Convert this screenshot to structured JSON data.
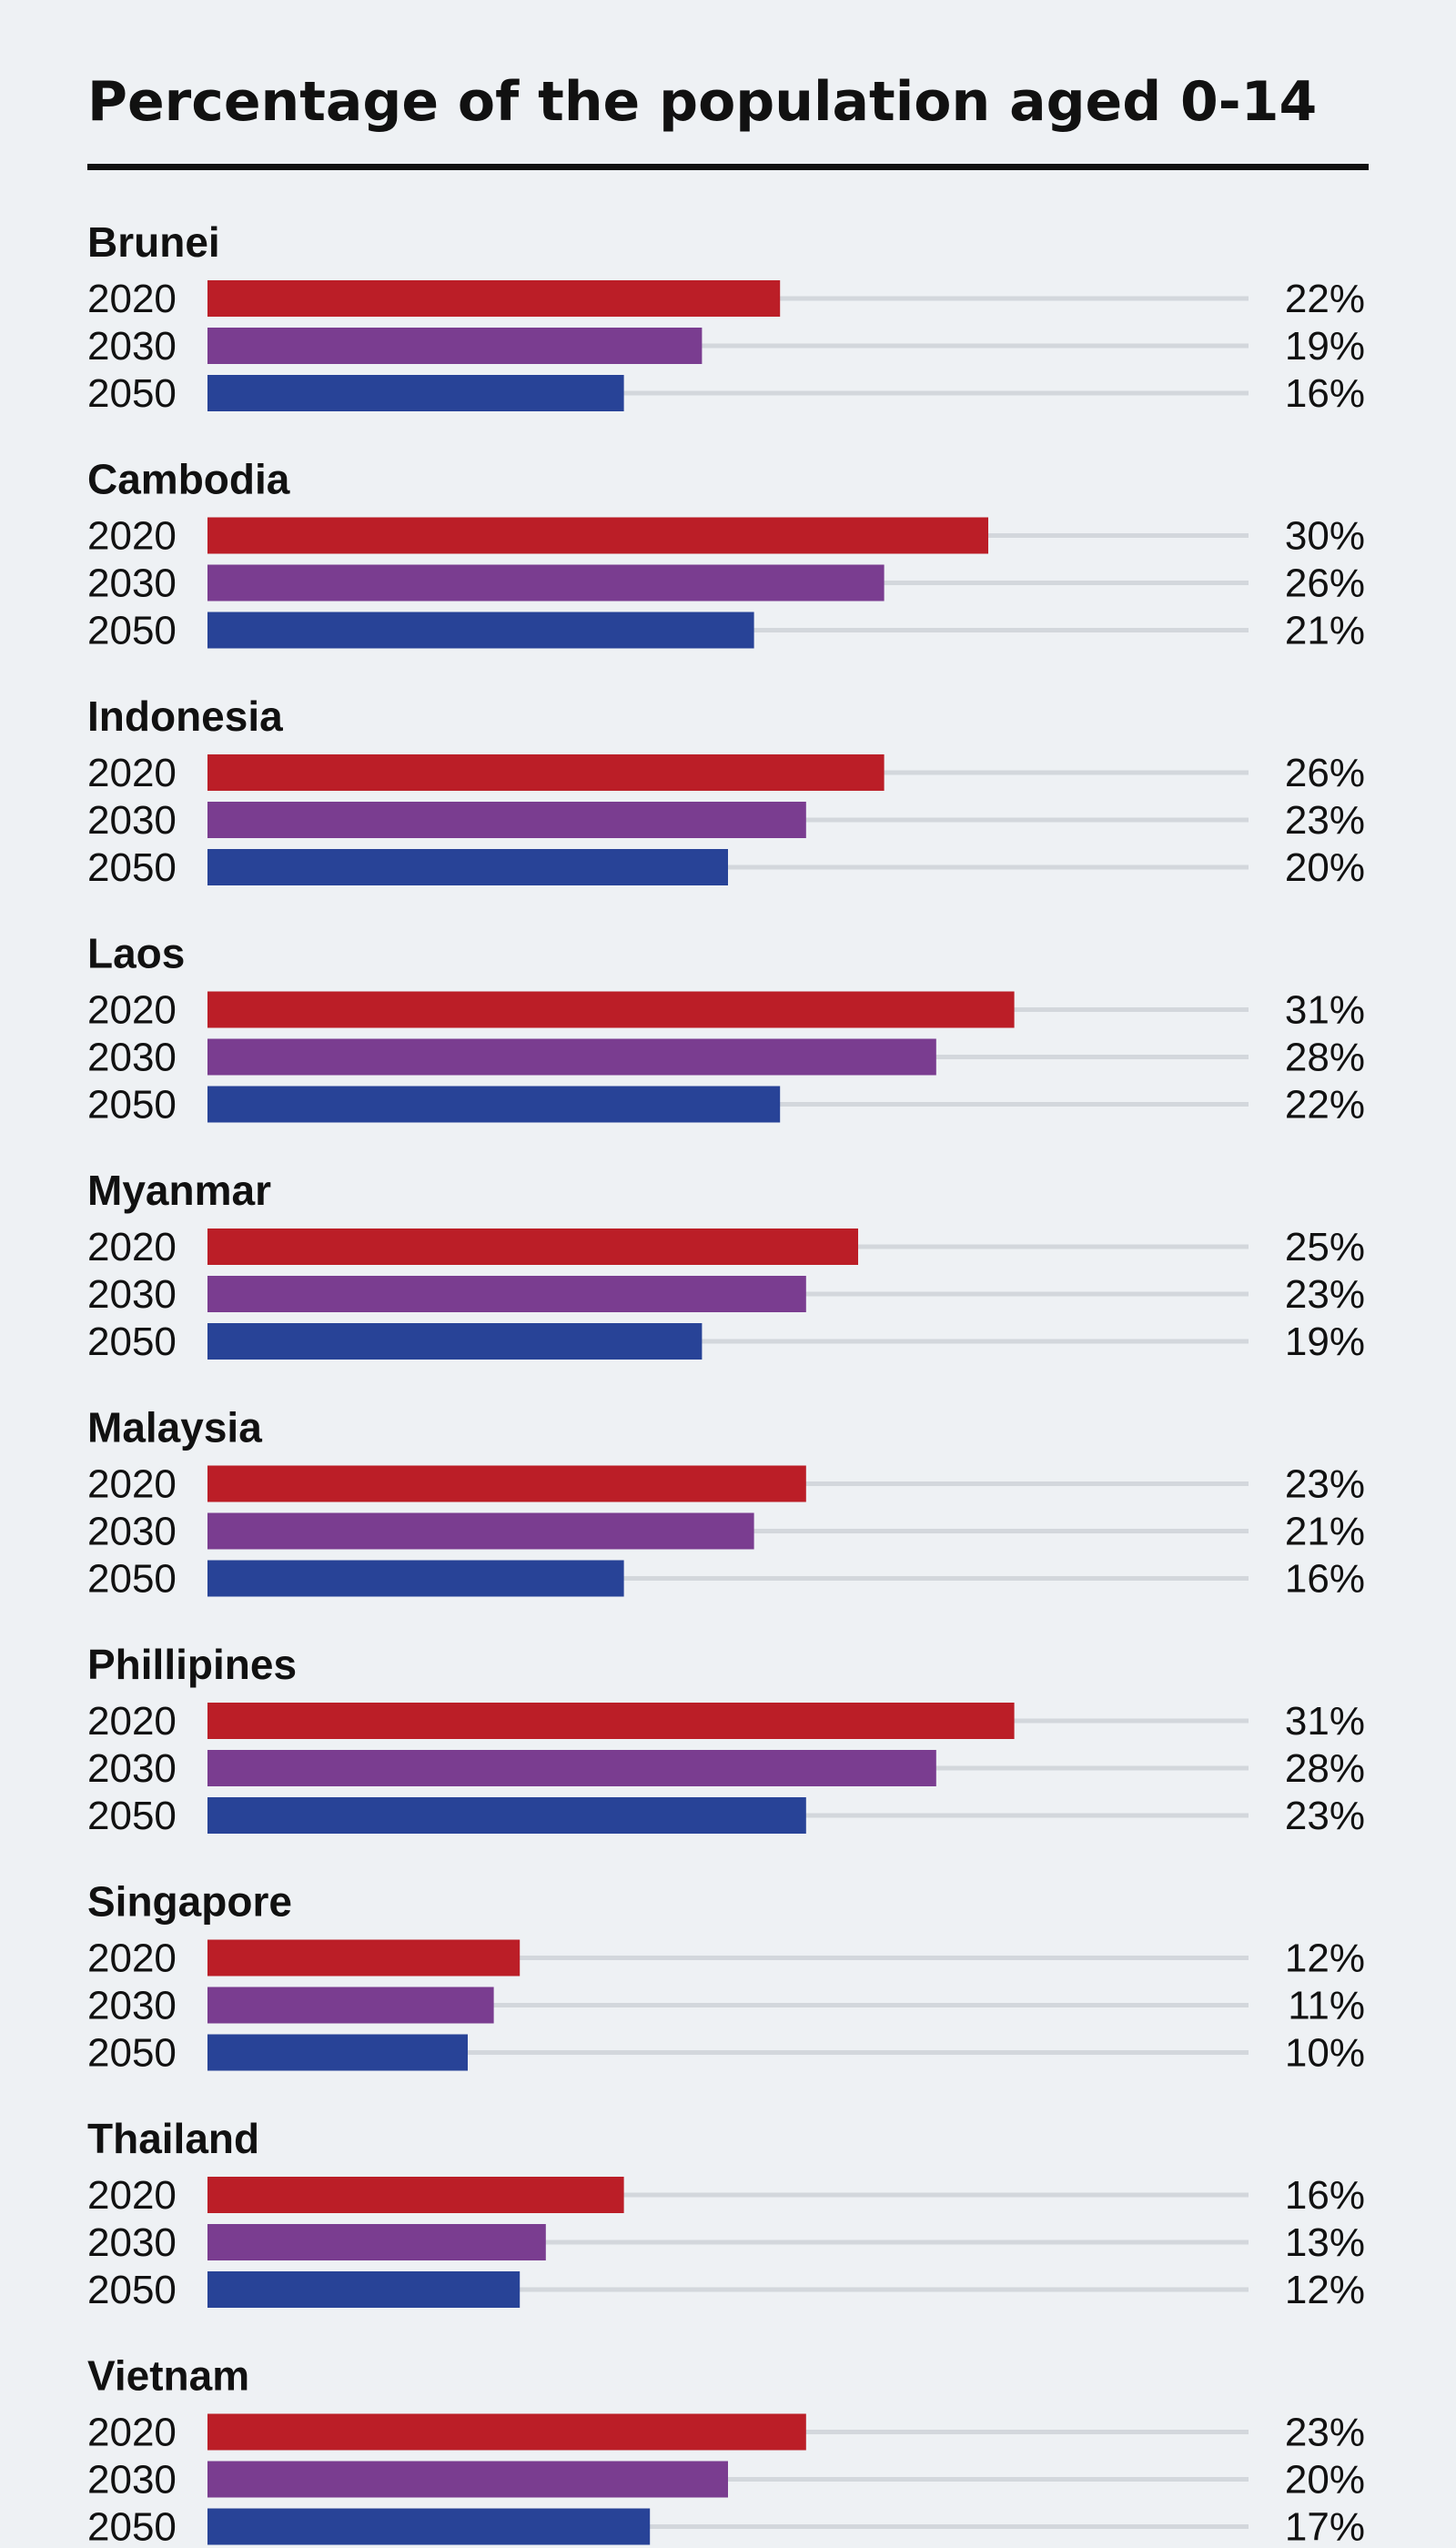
{
  "chart_data": {
    "type": "bar",
    "orientation": "horizontal",
    "title": "Percentage of the population aged 0-14",
    "series_names": [
      "2020",
      "2030",
      "2050"
    ],
    "value_suffix": "%",
    "xlim": [
      0,
      34
    ],
    "grid": true,
    "colors": {
      "2020": "#bb1e27",
      "2030": "#7a3d90",
      "2050": "#284397"
    },
    "groups": [
      {
        "country": "Brunei",
        "values": [
          22,
          19,
          16
        ]
      },
      {
        "country": "Cambodia",
        "values": [
          30,
          26,
          21
        ]
      },
      {
        "country": "Indonesia",
        "values": [
          26,
          23,
          20
        ]
      },
      {
        "country": "Laos",
        "values": [
          31,
          28,
          22
        ]
      },
      {
        "country": "Myanmar",
        "values": [
          25,
          23,
          19
        ]
      },
      {
        "country": "Malaysia",
        "values": [
          23,
          21,
          16
        ]
      },
      {
        "country": "Phillipines",
        "values": [
          31,
          28,
          23
        ]
      },
      {
        "country": "Singapore",
        "values": [
          12,
          11,
          10
        ]
      },
      {
        "country": "Thailand",
        "values": [
          16,
          13,
          12
        ]
      },
      {
        "country": "Vietnam",
        "values": [
          23,
          20,
          17
        ]
      }
    ]
  }
}
